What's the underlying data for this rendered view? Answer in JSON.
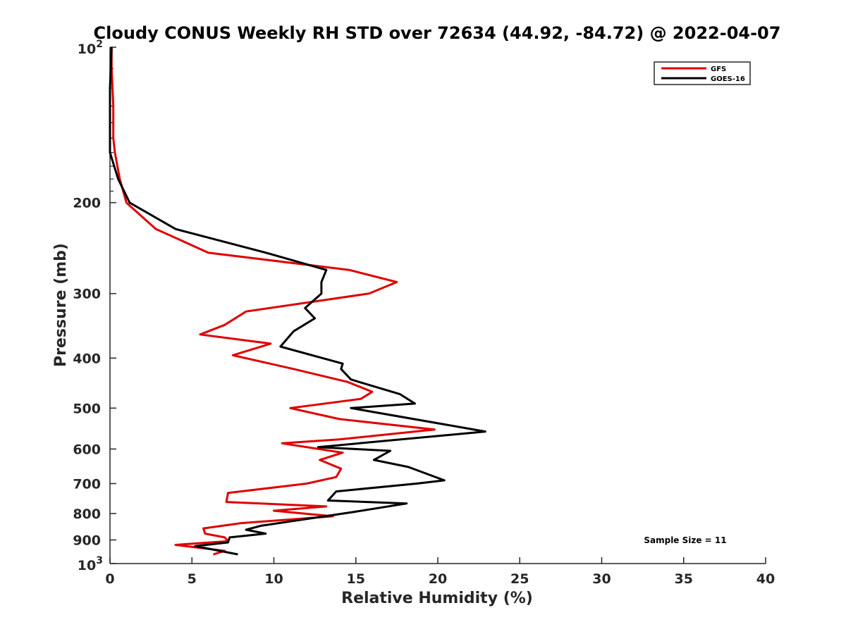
{
  "chart_data": {
    "type": "line",
    "title": "Cloudy CONUS Weekly RH STD over 72634 (44.92, -84.72) @ 2022-04-07",
    "xlabel": "Relative Humidity (%)",
    "ylabel": "Pressure (mb)",
    "xlim": [
      0,
      40
    ],
    "ylim": [
      100,
      1000
    ],
    "y_scale": "log",
    "y_reversed": true,
    "grid": false,
    "legend_position": "top-right",
    "x_ticks": [
      "0",
      "5",
      "10",
      "15",
      "20",
      "25",
      "30",
      "35",
      "40"
    ],
    "y_ticks": [
      {
        "value": 200,
        "label": "200"
      },
      {
        "value": 300,
        "label": "300"
      },
      {
        "value": 400,
        "label": "400"
      },
      {
        "value": 500,
        "label": "500"
      },
      {
        "value": 600,
        "label": "600"
      },
      {
        "value": 700,
        "label": "700"
      },
      {
        "value": 800,
        "label": "800"
      },
      {
        "value": 900,
        "label": "900"
      }
    ],
    "y_tick_top": {
      "base": "10",
      "exp": "2"
    },
    "y_tick_bottom": {
      "base": "10",
      "exp": "3"
    },
    "annotation": "Sample Size = 11",
    "series": [
      {
        "name": "GFS",
        "color": "#e00000",
        "points": [
          [
            0.1,
            100
          ],
          [
            0.1,
            110
          ],
          [
            0.2,
            130
          ],
          [
            0.2,
            150
          ],
          [
            0.3,
            160
          ],
          [
            0.6,
            180
          ],
          [
            1.0,
            200
          ],
          [
            2.8,
            225
          ],
          [
            6.0,
            250
          ],
          [
            14.6,
            270
          ],
          [
            17.5,
            285
          ],
          [
            15.8,
            300
          ],
          [
            8.3,
            325
          ],
          [
            7.0,
            345
          ],
          [
            5.5,
            360
          ],
          [
            9.8,
            375
          ],
          [
            7.5,
            395
          ],
          [
            11.2,
            420
          ],
          [
            14.5,
            445
          ],
          [
            16.0,
            465
          ],
          [
            15.3,
            480
          ],
          [
            11.0,
            500
          ],
          [
            14.0,
            525
          ],
          [
            19.8,
            550
          ],
          [
            14.0,
            575
          ],
          [
            10.5,
            585
          ],
          [
            14.2,
            610
          ],
          [
            12.8,
            630
          ],
          [
            14.1,
            655
          ],
          [
            13.8,
            680
          ],
          [
            12.0,
            700
          ],
          [
            7.2,
            730
          ],
          [
            7.1,
            760
          ],
          [
            13.2,
            775
          ],
          [
            10.0,
            790
          ],
          [
            13.6,
            810
          ],
          [
            8.0,
            835
          ],
          [
            5.7,
            855
          ],
          [
            5.8,
            875
          ],
          [
            7.0,
            890
          ],
          [
            7.2,
            905
          ],
          [
            4.0,
            920
          ],
          [
            7.0,
            945
          ],
          [
            6.3,
            960
          ]
        ]
      },
      {
        "name": "GOES-16",
        "color": "#000000",
        "points": [
          [
            0.1,
            100
          ],
          [
            0.0,
            120
          ],
          [
            0.0,
            140
          ],
          [
            0.0,
            160
          ],
          [
            0.5,
            180
          ],
          [
            1.2,
            200
          ],
          [
            4.0,
            225
          ],
          [
            9.5,
            250
          ],
          [
            13.2,
            270
          ],
          [
            12.9,
            285
          ],
          [
            12.9,
            300
          ],
          [
            11.9,
            320
          ],
          [
            12.5,
            335
          ],
          [
            11.2,
            355
          ],
          [
            10.4,
            380
          ],
          [
            14.2,
            410
          ],
          [
            14.1,
            420
          ],
          [
            14.7,
            440
          ],
          [
            17.7,
            470
          ],
          [
            18.6,
            490
          ],
          [
            14.7,
            500
          ],
          [
            22.9,
            555
          ],
          [
            12.7,
            595
          ],
          [
            17.1,
            605
          ],
          [
            16.1,
            630
          ],
          [
            18.2,
            650
          ],
          [
            20.4,
            690
          ],
          [
            18.7,
            700
          ],
          [
            13.8,
            725
          ],
          [
            13.3,
            755
          ],
          [
            18.1,
            765
          ],
          [
            14.8,
            795
          ],
          [
            9.2,
            845
          ],
          [
            8.3,
            860
          ],
          [
            9.5,
            875
          ],
          [
            7.3,
            890
          ],
          [
            7.2,
            910
          ],
          [
            5.2,
            925
          ],
          [
            7.8,
            960
          ]
        ]
      }
    ]
  }
}
